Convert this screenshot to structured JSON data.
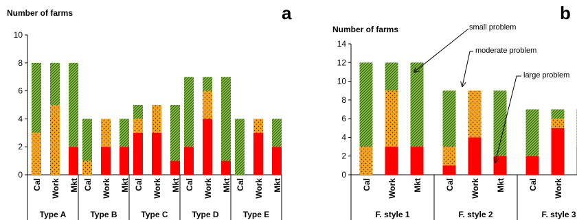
{
  "colors": {
    "small": "#8cc63f",
    "moderate": "#f7a21b",
    "large": "#ff0000",
    "hatch": "#2f4f1f",
    "dots": "#3a2a00"
  },
  "chart_data": [
    {
      "type": "bar",
      "stacked": true,
      "panel_label": "a",
      "ylabel": "Number of farms",
      "ylim": [
        0,
        10
      ],
      "yticks": [
        0,
        2,
        4,
        6,
        8,
        10
      ],
      "groups": [
        "Type A",
        "Type B",
        "Type C",
        "Type D",
        "Type E"
      ],
      "bar_labels": [
        "Cal",
        "Work",
        "Mkt"
      ],
      "series": [
        {
          "key": "large",
          "values": [
            [
              0,
              0,
              2
            ],
            [
              0,
              2,
              2
            ],
            [
              3,
              3,
              1
            ],
            [
              2,
              4,
              1
            ],
            [
              0,
              3,
              2
            ]
          ]
        },
        {
          "key": "moderate",
          "values": [
            [
              3,
              5,
              0
            ],
            [
              1,
              2,
              0
            ],
            [
              1,
              2,
              0
            ],
            [
              0,
              2,
              0
            ],
            [
              0,
              1,
              0
            ]
          ]
        },
        {
          "key": "small",
          "values": [
            [
              5,
              3,
              6
            ],
            [
              3,
              0,
              2
            ],
            [
              1,
              0,
              4
            ],
            [
              5,
              1,
              6
            ],
            [
              4,
              0,
              2
            ]
          ]
        }
      ]
    },
    {
      "type": "bar",
      "stacked": true,
      "panel_label": "b",
      "ylabel": "Number of farms",
      "ylim": [
        0,
        14
      ],
      "yticks": [
        0,
        2,
        4,
        6,
        8,
        10,
        12,
        14
      ],
      "groups": [
        "F. style 1",
        "F. style 2",
        "F. style 3"
      ],
      "bar_labels": [
        "Cal",
        "Work",
        "Mkt"
      ],
      "series": [
        {
          "key": "large",
          "values": [
            [
              0,
              3,
              3
            ],
            [
              1,
              4,
              2
            ],
            [
              2,
              5,
              3
            ]
          ]
        },
        {
          "key": "moderate",
          "values": [
            [
              3,
              6,
              0
            ],
            [
              2,
              5,
              0
            ],
            [
              0,
              1,
              0
            ]
          ]
        },
        {
          "key": "small",
          "values": [
            [
              9,
              3,
              9
            ],
            [
              6,
              0,
              7
            ],
            [
              5,
              1,
              4
            ]
          ]
        }
      ],
      "annotations": [
        "small problem",
        "moderate problem",
        "large problem"
      ]
    }
  ]
}
